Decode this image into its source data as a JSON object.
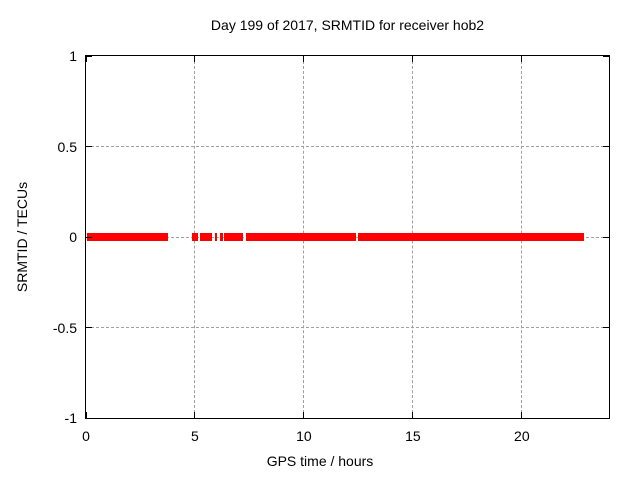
{
  "title": "Day 199 of 2017, SRMTID for receiver hob2",
  "colors": {
    "background": "#ffffff",
    "border": "#000000",
    "grid": "#a0a0a0",
    "text": "#000000",
    "series": "#ff0000"
  },
  "chart_data": {
    "type": "scatter",
    "title": "Day 199 of 2017, SRMTID for receiver hob2",
    "xlabel": "GPS time / hours",
    "ylabel": "SRMTID / TECUs",
    "xlim": [
      0,
      24
    ],
    "ylim": [
      -1,
      1
    ],
    "xticks": [
      0,
      5,
      10,
      15,
      20
    ],
    "xtick_labels": [
      "0",
      "5",
      "10",
      "15",
      "20"
    ],
    "yticks": [
      1,
      0.5,
      0,
      -0.5,
      -1
    ],
    "ytick_labels": [
      "1",
      "0.5",
      "0",
      "-0.5",
      "-1"
    ],
    "grid": true,
    "grid_style": "dashed",
    "legend": "none",
    "series": [
      {
        "name": "SRMTID",
        "color": "#ff0000",
        "marker": "filled-square",
        "y_value": 0,
        "segments_hours": [
          [
            0.05,
            3.75
          ],
          [
            4.85,
            5.14
          ],
          [
            5.22,
            5.79
          ],
          [
            5.92,
            6.03
          ],
          [
            6.15,
            6.29
          ],
          [
            6.33,
            7.2
          ],
          [
            7.33,
            12.41
          ],
          [
            12.49,
            22.85
          ]
        ]
      }
    ]
  }
}
